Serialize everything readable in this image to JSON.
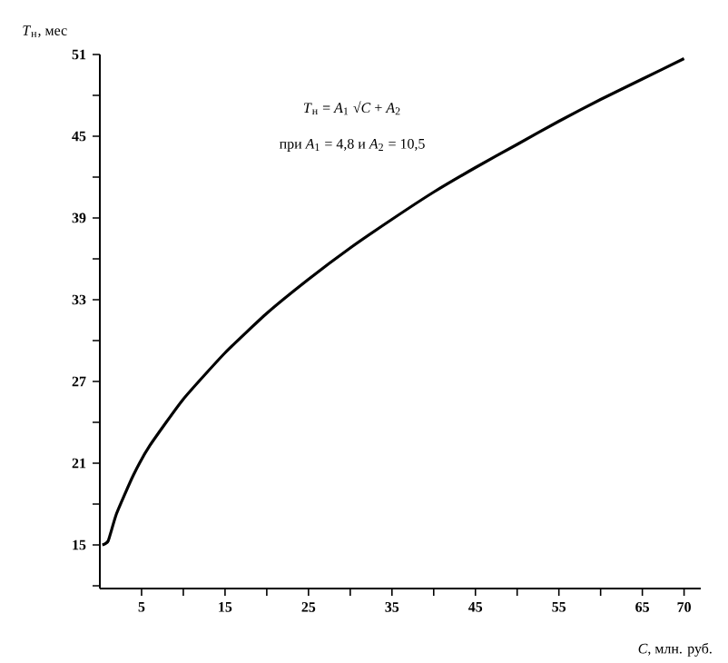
{
  "chart_data": {
    "type": "line",
    "xlabel": "*C*, млн. руб.",
    "ylabel": "*T*$_{н}$, мес",
    "annotations": [
      "*T*$_{н}$ = *A*$_{1}$ √*C* + *A*$_{2}$",
      "при *A*$_{1}$ = 4,8 и *A*$_{2}$ = 10,5"
    ],
    "x": [
      0.3,
      1,
      2,
      4,
      6,
      10,
      15,
      20,
      25,
      30,
      35,
      40,
      45,
      50,
      55,
      60,
      65,
      70
    ],
    "series": [
      {
        "color": "#000000",
        "values": [
          15,
          15.3,
          17.3,
          20.1,
          22.3,
          25.7,
          29.1,
          32.0,
          34.5,
          36.8,
          38.9,
          40.9,
          42.7,
          44.4,
          46.1,
          47.7,
          49.2,
          50.7
        ]
      }
    ],
    "xlim": [
      0,
      72
    ],
    "ylim": [
      11.8,
      51
    ],
    "xticks": [
      5,
      {
        "value": 10,
        "label": null
      },
      15,
      {
        "value": 20,
        "label": null
      },
      25,
      {
        "value": 30,
        "label": null
      },
      35,
      {
        "value": 40,
        "label": null
      },
      45,
      {
        "value": 50,
        "label": null
      },
      55,
      {
        "value": 60,
        "label": null
      },
      65,
      70
    ],
    "yticks": [
      {
        "value": 12,
        "label": null
      },
      15,
      {
        "value": 18,
        "label": null
      },
      21,
      {
        "value": 24,
        "label": null
      },
      27,
      {
        "value": 30,
        "label": null
      },
      33,
      {
        "value": 36,
        "label": null
      },
      39,
      {
        "value": 42,
        "label": null
      },
      45,
      {
        "value": 48,
        "label": null
      },
      51
    ]
  }
}
